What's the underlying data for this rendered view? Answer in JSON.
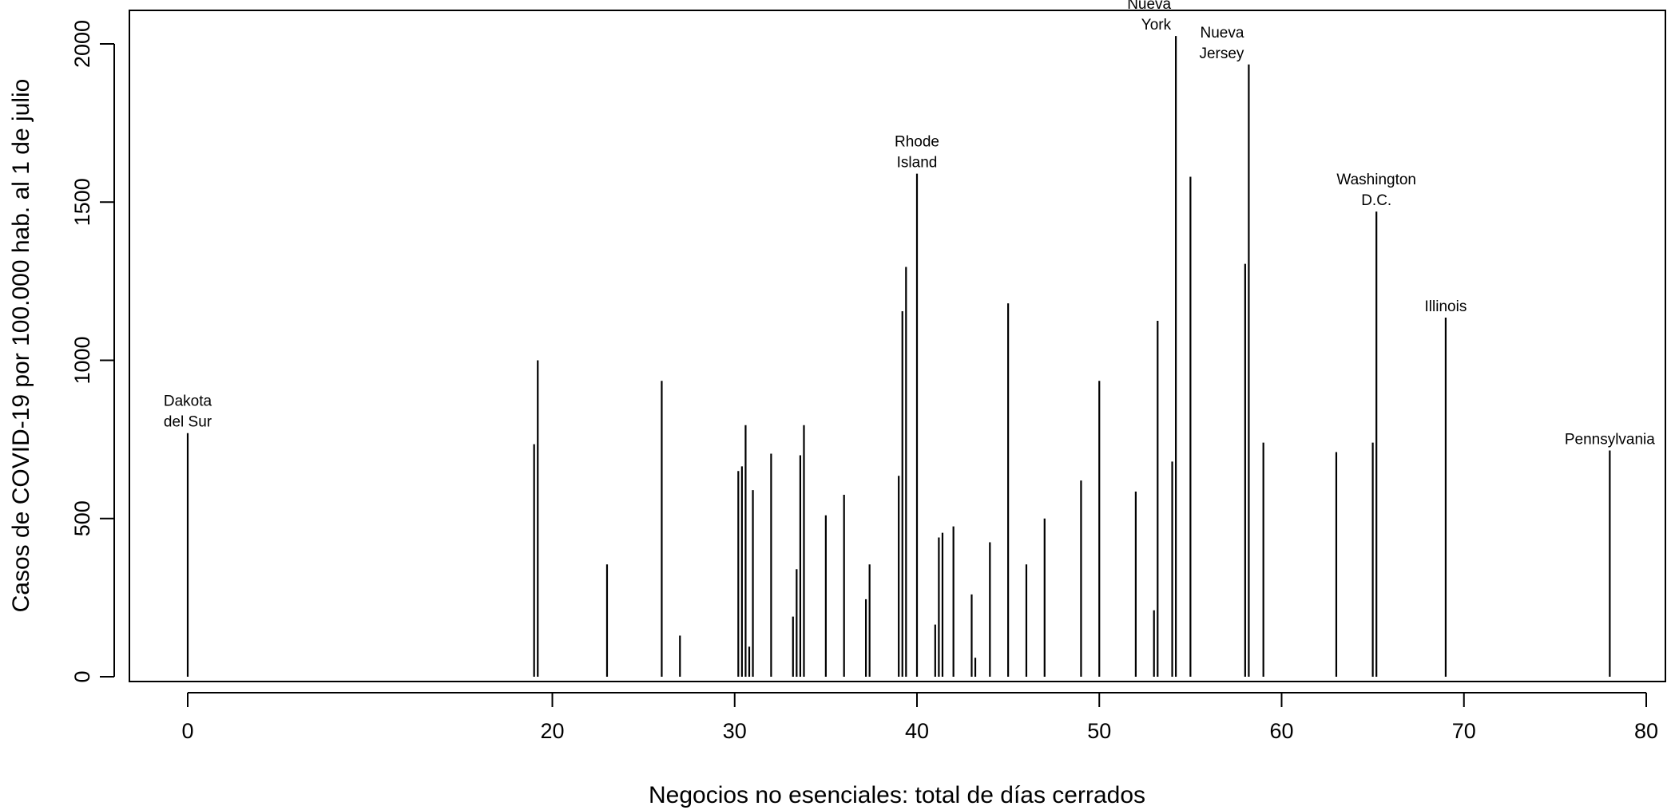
{
  "chart_data": {
    "type": "bar",
    "style": "vertical-lines",
    "xlabel": "Negocios no esenciales: total de días cerrados",
    "ylabel": "Casos de COVID-19 por 100.000 hab. al 1 de julio",
    "xlim": [
      -3,
      81
    ],
    "ylim": [
      0,
      2100
    ],
    "xticks": [
      0,
      20,
      30,
      40,
      50,
      60,
      70,
      80
    ],
    "yticks": [
      0,
      500,
      1000,
      1500,
      2000
    ],
    "grid": false,
    "points": [
      {
        "x": 0,
        "y": 770,
        "label": [
          "Dakota",
          "del Sur"
        ],
        "label_align": "center"
      },
      {
        "x": 19.0,
        "y": 735
      },
      {
        "x": 19.2,
        "y": 1000
      },
      {
        "x": 23,
        "y": 355
      },
      {
        "x": 26,
        "y": 935
      },
      {
        "x": 27,
        "y": 130
      },
      {
        "x": 30.2,
        "y": 650
      },
      {
        "x": 30.4,
        "y": 665
      },
      {
        "x": 30.6,
        "y": 795
      },
      {
        "x": 30.8,
        "y": 95
      },
      {
        "x": 31,
        "y": 590
      },
      {
        "x": 32,
        "y": 705
      },
      {
        "x": 33.2,
        "y": 190
      },
      {
        "x": 33.4,
        "y": 340
      },
      {
        "x": 33.6,
        "y": 700
      },
      {
        "x": 33.8,
        "y": 795
      },
      {
        "x": 35,
        "y": 510
      },
      {
        "x": 36,
        "y": 575
      },
      {
        "x": 37.2,
        "y": 245
      },
      {
        "x": 37.4,
        "y": 355
      },
      {
        "x": 39.0,
        "y": 635
      },
      {
        "x": 39.2,
        "y": 1155
      },
      {
        "x": 39.4,
        "y": 1295
      },
      {
        "x": 40,
        "y": 1590,
        "label": [
          "Rhode",
          "Island"
        ],
        "label_align": "center"
      },
      {
        "x": 41.0,
        "y": 165
      },
      {
        "x": 41.2,
        "y": 440
      },
      {
        "x": 41.4,
        "y": 455
      },
      {
        "x": 42,
        "y": 475
      },
      {
        "x": 43,
        "y": 260
      },
      {
        "x": 43.2,
        "y": 60
      },
      {
        "x": 44,
        "y": 425
      },
      {
        "x": 45,
        "y": 1180
      },
      {
        "x": 46,
        "y": 355
      },
      {
        "x": 47,
        "y": 500
      },
      {
        "x": 49,
        "y": 620
      },
      {
        "x": 50,
        "y": 935
      },
      {
        "x": 52,
        "y": 585
      },
      {
        "x": 53,
        "y": 210
      },
      {
        "x": 53.2,
        "y": 1125
      },
      {
        "x": 54,
        "y": 680
      },
      {
        "x": 54.2,
        "y": 2025,
        "label": [
          "Nueva",
          "York"
        ],
        "label_align": "left"
      },
      {
        "x": 55,
        "y": 1580
      },
      {
        "x": 58,
        "y": 1305
      },
      {
        "x": 58.2,
        "y": 1935,
        "label": [
          "Nueva",
          "Jersey"
        ],
        "label_align": "left"
      },
      {
        "x": 59,
        "y": 740
      },
      {
        "x": 63,
        "y": 710
      },
      {
        "x": 65,
        "y": 740
      },
      {
        "x": 65.2,
        "y": 1470,
        "label": [
          "Washington",
          "D.C."
        ],
        "label_align": "center"
      },
      {
        "x": 69,
        "y": 1135,
        "label": [
          "Illinois"
        ],
        "label_align": "center"
      },
      {
        "x": 78,
        "y": 715,
        "label": [
          "Pennsylvania"
        ],
        "label_align": "center"
      }
    ]
  }
}
